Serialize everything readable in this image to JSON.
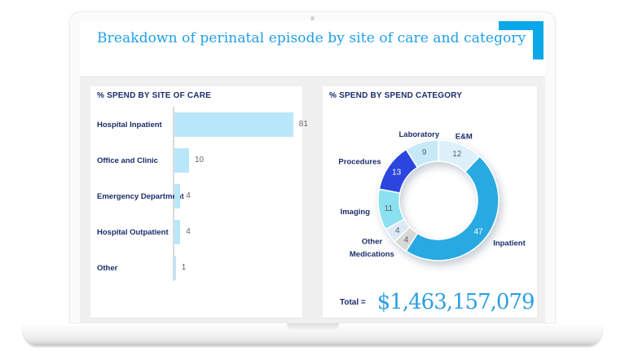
{
  "title": "Breakdown of perinatal episode by site of care and category",
  "accent_colors": {
    "title_blue": "#1e9fe8",
    "bracket_blue": "#0aa8e8",
    "navy_text": "#1a2d6b",
    "total_blue": "#2e9fe2",
    "bar_blue": "#b9e7fa"
  },
  "chart_data": [
    {
      "type": "bar",
      "title": "% SPEND BY SITE OF CARE",
      "orientation": "horizontal",
      "categories": [
        "Hospital Inpatient",
        "Office and Clinic",
        "Emergency Department",
        "Hospital Outpatient",
        "Other"
      ],
      "values": [
        81,
        10,
        4,
        4,
        1
      ],
      "xlim": [
        0,
        100
      ],
      "bar_color": "#b9e7fa",
      "grid": false
    },
    {
      "type": "pie",
      "donut": true,
      "title": "% SPEND BY SPEND CATEGORY",
      "start_angle_deg": 0,
      "segments": [
        {
          "label": "E&M",
          "value": 12,
          "color": "#dcf1fb"
        },
        {
          "label": "Inpatient",
          "value": 47,
          "color": "#29a9e1"
        },
        {
          "label": "Medications",
          "value": 4,
          "color": "#d8d8d6"
        },
        {
          "label": "Other",
          "value": 4,
          "color": "#dceaf4"
        },
        {
          "label": "Imaging",
          "value": 11,
          "color": "#8be1ef"
        },
        {
          "label": "Procedures",
          "value": 13,
          "color": "#2a46de"
        },
        {
          "label": "Laboratory",
          "value": 9,
          "color": "#c6e9f8"
        }
      ],
      "total_label": "Total =",
      "total_value": "$1,463,157,079"
    }
  ]
}
